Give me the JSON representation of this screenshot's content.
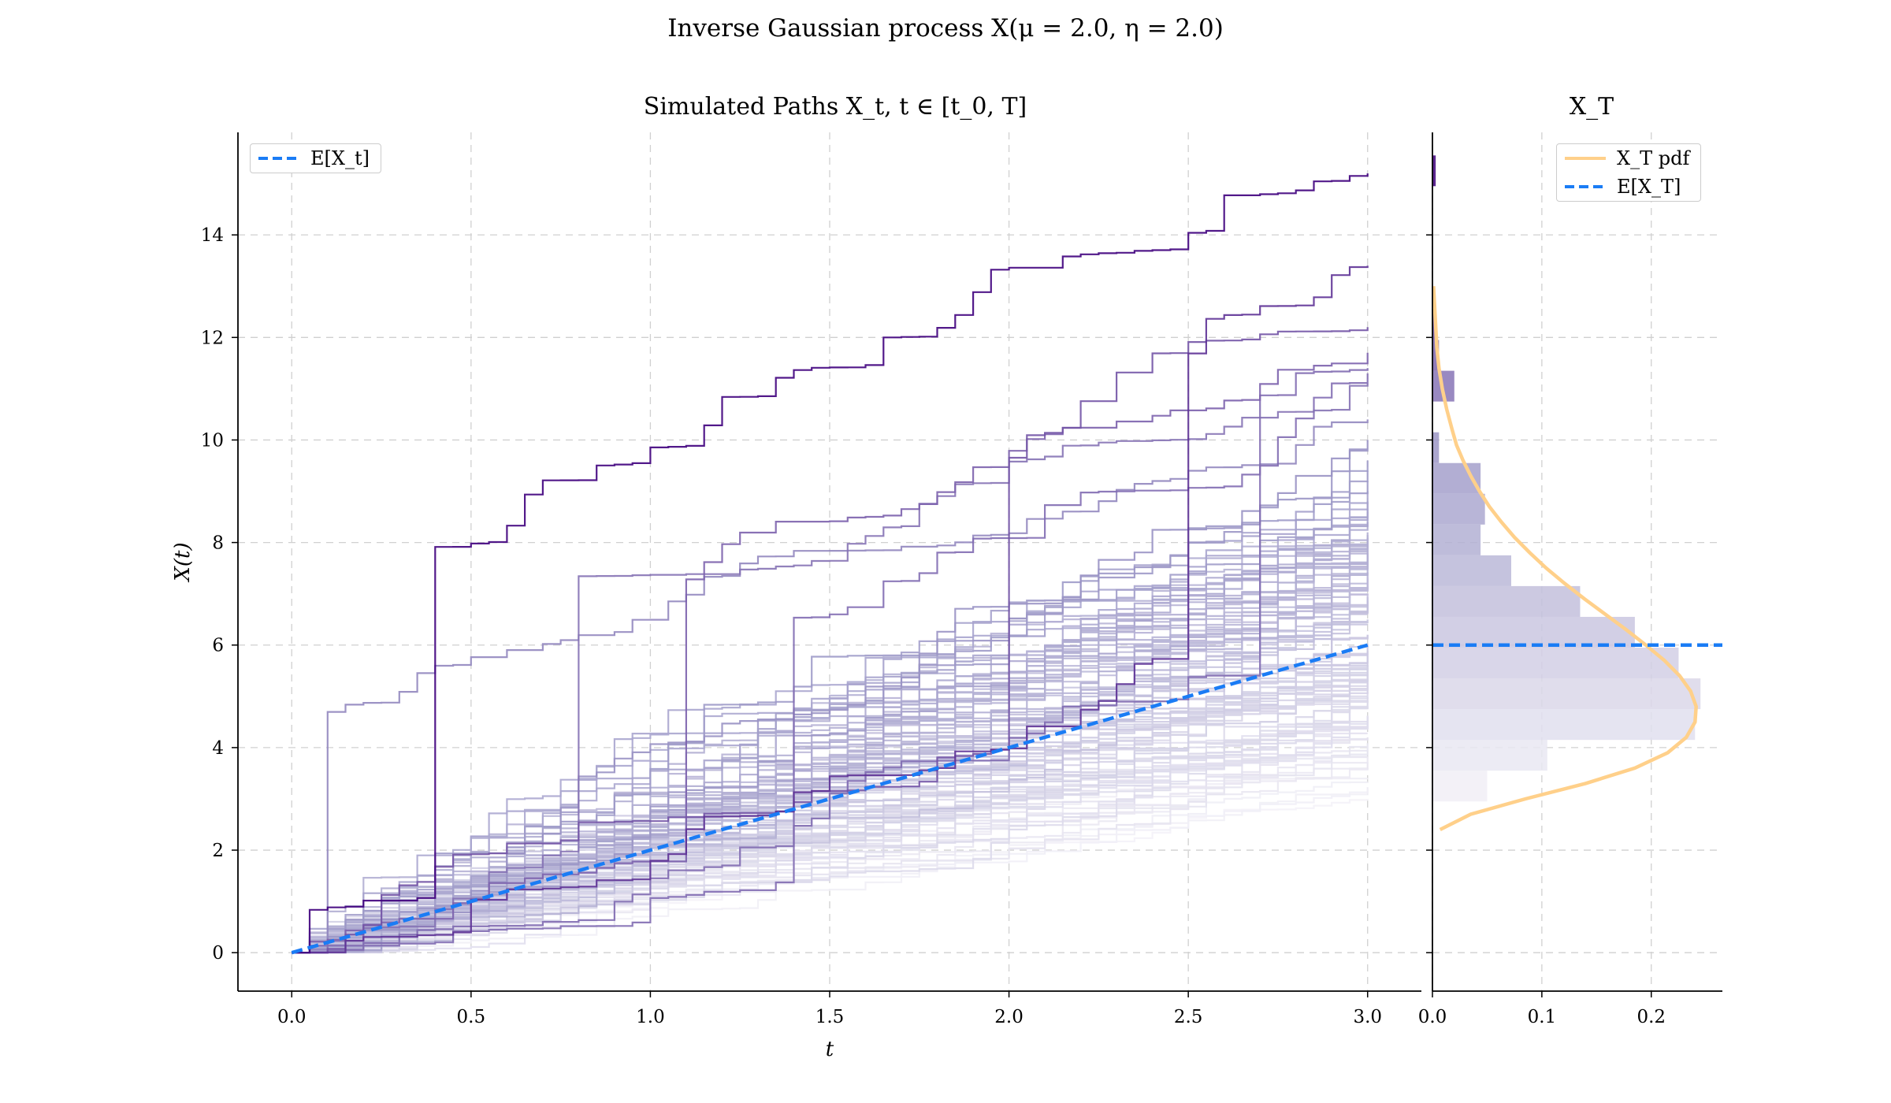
{
  "title": "Inverse Gaussian process X(μ = 2.0, η = 2.0)",
  "colors": {
    "mean": "#1a7cf5",
    "pdf": "#ffd08a",
    "path_dark": "#3f007d",
    "path_light": "#f4f2f8",
    "grid": "#d0d0d0"
  },
  "chart_data": [
    {
      "type": "line",
      "title": "Simulated Paths X_t, t ∈ [t_0, T]",
      "xlabel": "t",
      "ylabel": "X(t)",
      "xlim": [
        -0.15,
        3.15
      ],
      "ylim": [
        -0.75,
        16.0
      ],
      "xticks": [
        "0.0",
        "0.5",
        "1.0",
        "1.5",
        "2.0",
        "2.5",
        "3.0"
      ],
      "yticks": [
        "0",
        "2",
        "4",
        "6",
        "8",
        "10",
        "12",
        "14"
      ],
      "grid": true,
      "legend": {
        "position": "top-left",
        "entries": [
          "E[X_t]"
        ]
      },
      "series": [
        {
          "name": "E[X_t]",
          "style": "dashed",
          "x": [
            0.0,
            3.0
          ],
          "y": [
            0.0,
            6.0
          ]
        }
      ],
      "simulated_paths": {
        "x_range": [
          0.0,
          3.0
        ],
        "terminal_values": [
          15.2,
          13.4,
          12.2,
          11.7,
          11.4,
          11.3,
          11.1,
          10.4,
          10.0,
          9.8,
          9.6,
          9.4,
          9.2,
          9.0,
          8.8,
          8.6,
          8.4,
          8.2,
          8.0,
          7.8,
          7.6,
          7.4,
          7.2,
          7.0,
          6.8,
          6.6,
          6.4,
          6.2,
          6.0,
          5.8,
          5.6,
          5.4,
          5.2,
          5.0,
          4.8,
          4.6,
          4.4,
          4.2,
          4.0,
          3.8,
          3.6,
          3.4,
          3.2,
          3.0
        ]
      }
    },
    {
      "type": "bar",
      "title": "X_T",
      "orientation": "horizontal",
      "xlim": [
        0.0,
        0.265
      ],
      "ylim": [
        -0.75,
        16.0
      ],
      "xticks": [
        "0.0",
        "0.1",
        "0.2"
      ],
      "grid": true,
      "legend": {
        "position": "top-right",
        "entries": [
          "X_T pdf",
          "E[X_T]"
        ]
      },
      "histogram": {
        "bin_edges": [
          2.95,
          3.55,
          4.15,
          4.75,
          5.35,
          5.95,
          6.55,
          7.15,
          7.75,
          8.35,
          8.95,
          9.55,
          10.15,
          10.75,
          11.35,
          11.95,
          12.55,
          13.15,
          13.75,
          14.35,
          14.95,
          15.55
        ],
        "densities": [
          0.05,
          0.105,
          0.24,
          0.245,
          0.225,
          0.185,
          0.135,
          0.072,
          0.044,
          0.048,
          0.044,
          0.006,
          0.0,
          0.02,
          0.006,
          0.003,
          0.0,
          0.0,
          0.0,
          0.0,
          0.003
        ]
      },
      "series": [
        {
          "name": "X_T pdf",
          "style": "solid",
          "y": [
            2.4,
            2.7,
            3.0,
            3.3,
            3.6,
            3.9,
            4.2,
            4.5,
            4.8,
            5.1,
            5.4,
            5.7,
            6.0,
            6.3,
            6.6,
            6.9,
            7.2,
            7.5,
            7.8,
            8.1,
            8.4,
            8.7,
            9.0,
            9.3,
            9.6,
            9.9,
            10.2,
            10.6,
            11.0,
            11.4,
            11.8,
            12.2,
            12.6,
            13.0
          ],
          "density": [
            0.007,
            0.035,
            0.085,
            0.14,
            0.185,
            0.215,
            0.232,
            0.24,
            0.241,
            0.236,
            0.226,
            0.212,
            0.195,
            0.177,
            0.158,
            0.139,
            0.121,
            0.104,
            0.089,
            0.075,
            0.063,
            0.052,
            0.043,
            0.035,
            0.028,
            0.022,
            0.018,
            0.013,
            0.009,
            0.006,
            0.004,
            0.003,
            0.002,
            0.001
          ]
        },
        {
          "name": "E[X_T]",
          "style": "dashed",
          "y": [
            6.0,
            6.0
          ],
          "density": [
            0.0,
            0.265
          ]
        }
      ]
    }
  ]
}
